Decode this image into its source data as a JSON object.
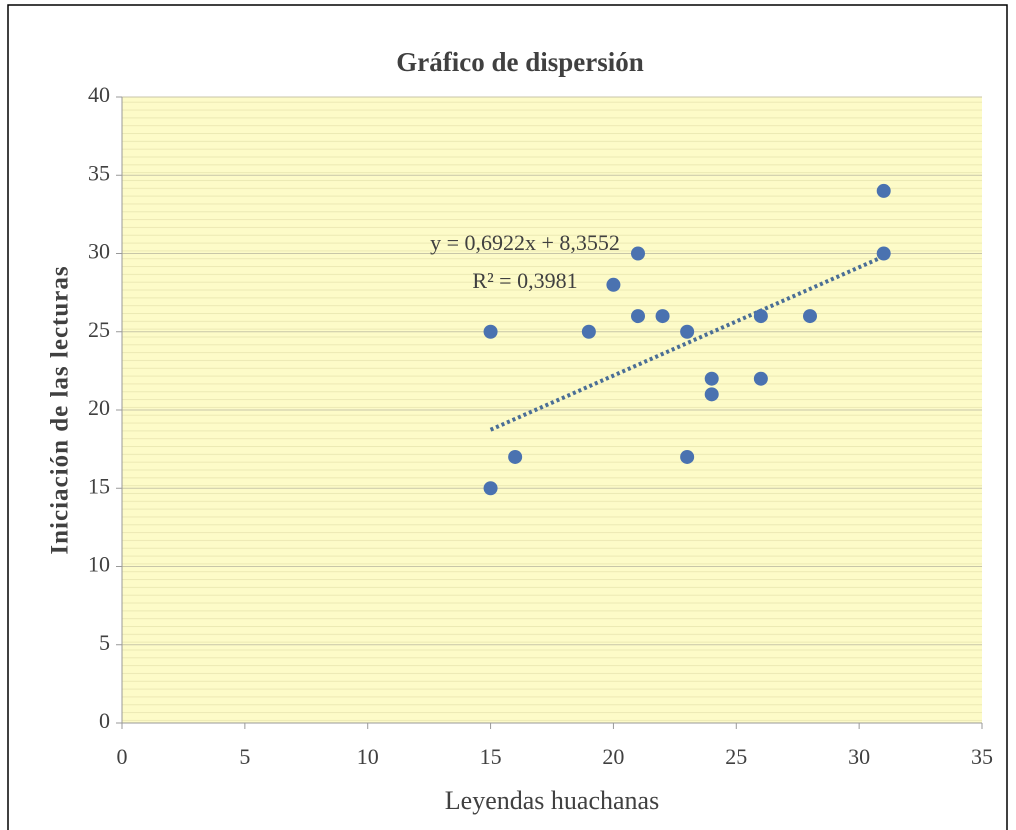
{
  "chart_data": {
    "type": "scatter",
    "title": "Gráfico de dispersión",
    "x_label": "Leyendas huachanas",
    "y_label": "Iniciación de las lecturas",
    "x": [
      15,
      15,
      16,
      19,
      20,
      21,
      21,
      22,
      23,
      23,
      24,
      24,
      26,
      26,
      28,
      31,
      31
    ],
    "values": [
      25,
      15,
      17,
      25,
      28,
      30,
      26,
      26,
      25,
      17,
      22,
      21,
      26,
      22,
      26,
      34,
      30
    ],
    "color": "#4a72b0",
    "xlim": [
      0,
      35
    ],
    "xticks": [
      0,
      5,
      10,
      15,
      20,
      25,
      30,
      35
    ],
    "ylim": [
      0,
      40
    ],
    "yticks": [
      0,
      5,
      10,
      15,
      20,
      25,
      30,
      35,
      40
    ],
    "grid": true,
    "trendline": {
      "equation": "y = 0,6922x  + 8,3552",
      "r2": "R² = 0,3981",
      "slope": 0.6922,
      "intercept": 8.3552,
      "color": "#4a6e96"
    }
  }
}
